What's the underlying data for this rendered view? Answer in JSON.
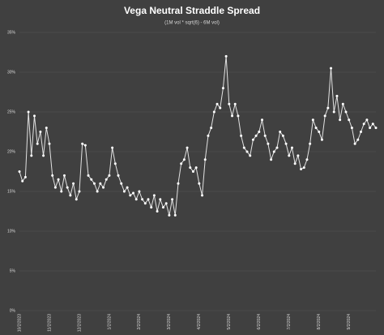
{
  "chart_data": {
    "type": "line",
    "title": "Vega Neutral Straddle Spread",
    "subtitle": "(1M vol * sqrt(6) - 6M vol)",
    "color": "#ffffff",
    "grid": true,
    "ylim": [
      0,
      35
    ],
    "yticks": [
      {
        "value": 0,
        "label": "0%"
      },
      {
        "value": 5,
        "label": "5%"
      },
      {
        "value": 10,
        "label": "10%"
      },
      {
        "value": 15,
        "label": "15%"
      },
      {
        "value": 20,
        "label": "20%"
      },
      {
        "value": 25,
        "label": "25%"
      },
      {
        "value": 30,
        "label": "30%"
      },
      {
        "value": 35,
        "label": "35%"
      }
    ],
    "categories": [
      "10/2/2023",
      null,
      null,
      null,
      null,
      null,
      null,
      null,
      null,
      null,
      "11/2/2023",
      null,
      null,
      null,
      null,
      null,
      null,
      null,
      null,
      null,
      "12/2/2023",
      null,
      null,
      null,
      null,
      null,
      null,
      null,
      null,
      null,
      "1/2/2024",
      null,
      null,
      null,
      null,
      null,
      null,
      null,
      null,
      null,
      "2/2/2024",
      null,
      null,
      null,
      null,
      null,
      null,
      null,
      null,
      null,
      "3/2/2024",
      null,
      null,
      null,
      null,
      null,
      null,
      null,
      null,
      null,
      "4/2/2024",
      null,
      null,
      null,
      null,
      null,
      null,
      null,
      null,
      null,
      "5/2/2024",
      null,
      null,
      null,
      null,
      null,
      null,
      null,
      null,
      null,
      "6/2/2024",
      null,
      null,
      null,
      null,
      null,
      null,
      null,
      null,
      null,
      "7/2/2024",
      null,
      null,
      null,
      null,
      null,
      null,
      null,
      null,
      null,
      "8/2/2024",
      null,
      null,
      null,
      null,
      null,
      null,
      null,
      null,
      null,
      "9/2/2024",
      null,
      null,
      null,
      null,
      null,
      null,
      null,
      null,
      null
    ],
    "values": [
      17.5,
      16.3,
      16.8,
      25,
      19.5,
      24.5,
      21,
      22.5,
      19.5,
      23,
      21,
      17,
      15.5,
      16.5,
      15,
      17,
      15.5,
      14.5,
      16,
      14,
      15,
      21,
      20.8,
      17,
      16.5,
      16,
      15,
      16,
      15.5,
      16.5,
      17,
      20.5,
      18.5,
      17,
      16,
      15,
      15.5,
      14.5,
      14.8,
      14,
      15,
      14,
      13.5,
      14,
      13,
      14.5,
      12.5,
      14,
      13,
      13.5,
      12,
      14,
      12,
      16,
      18.5,
      19,
      20.5,
      18,
      17.5,
      18,
      16,
      14.5,
      19,
      22,
      23,
      25,
      26,
      25.5,
      28,
      32,
      26,
      24.5,
      26,
      24.5,
      22,
      20.5,
      20,
      19.5,
      21.5,
      22,
      22.5,
      24,
      22,
      21,
      19,
      20,
      20.5,
      22.5,
      22,
      21,
      19.5,
      20.5,
      18.5,
      19.5,
      17.8,
      18,
      19,
      21,
      24,
      23,
      22.5,
      21.5,
      24.5,
      25.5,
      30.5,
      25,
      27,
      24,
      26,
      25,
      24,
      23,
      21,
      21.5,
      22.5,
      23.5,
      24,
      23,
      23.5,
      23
    ]
  }
}
